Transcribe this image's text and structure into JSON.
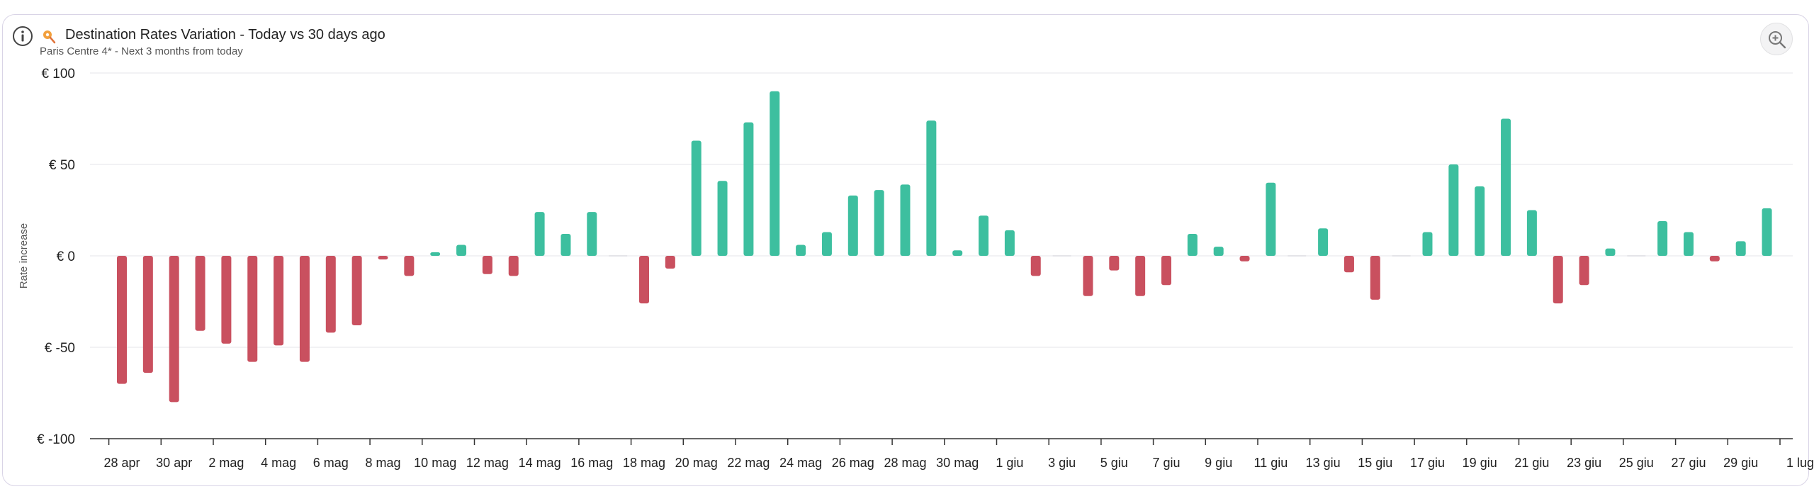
{
  "header": {
    "title": "Destination Rates Variation - Today vs 30 days ago",
    "subtitle": "Paris Centre 4* - Next 3 months from today"
  },
  "icons": {
    "info": "info-icon",
    "pin": "map-pin-icon",
    "zoom": "zoom-in-icon"
  },
  "colors": {
    "positive": "#3dbf9f",
    "negative": "#c9505f",
    "grid": "#e6e6ea",
    "axis": "#333333"
  },
  "chart_data": {
    "type": "bar",
    "title": "",
    "xlabel": "",
    "ylabel": "Rate increase",
    "ylim": [
      -100,
      100
    ],
    "yticks": [
      100,
      50,
      0,
      -50,
      -100
    ],
    "ytick_labels": [
      "€ 100",
      "€ 50",
      "€ 0",
      "€ -50",
      "€ -100"
    ],
    "grid": true,
    "x_tick_labels": [
      "28 apr",
      "30 apr",
      "2 mag",
      "4 mag",
      "6 mag",
      "8 mag",
      "10 mag",
      "12 mag",
      "14 mag",
      "16 mag",
      "18 mag",
      "20 mag",
      "22 mag",
      "24 mag",
      "26 mag",
      "28 mag",
      "30 mag",
      "1 giu",
      "3 giu",
      "5 giu",
      "7 giu",
      "9 giu",
      "11 giu",
      "13 giu",
      "15 giu",
      "17 giu",
      "19 giu",
      "21 giu",
      "23 giu",
      "25 giu",
      "27 giu",
      "29 giu",
      "1 lug"
    ],
    "categories": [
      "28 apr",
      "29 apr",
      "30 apr",
      "1 mag",
      "2 mag",
      "3 mag",
      "4 mag",
      "5 mag",
      "6 mag",
      "7 mag",
      "8 mag",
      "9 mag",
      "10 mag",
      "11 mag",
      "12 mag",
      "13 mag",
      "14 mag",
      "15 mag",
      "16 mag",
      "17 mag",
      "18 mag",
      "19 mag",
      "20 mag",
      "21 mag",
      "22 mag",
      "23 mag",
      "24 mag",
      "25 mag",
      "26 mag",
      "27 mag",
      "28 mag",
      "29 mag",
      "30 mag",
      "31 mag",
      "1 giu",
      "2 giu",
      "3 giu",
      "4 giu",
      "5 giu",
      "6 giu",
      "7 giu",
      "8 giu",
      "9 giu",
      "10 giu",
      "11 giu",
      "12 giu",
      "13 giu",
      "14 giu",
      "15 giu",
      "16 giu",
      "17 giu",
      "18 giu",
      "19 giu",
      "20 giu",
      "21 giu",
      "22 giu",
      "23 giu",
      "24 giu",
      "25 giu",
      "26 giu",
      "27 giu",
      "28 giu",
      "29 giu",
      "30 giu"
    ],
    "values": [
      -70,
      -64,
      -80,
      -41,
      -48,
      -58,
      -49,
      -58,
      -42,
      -38,
      -2,
      -11,
      2,
      6,
      -10,
      -11,
      24,
      12,
      24,
      0,
      -26,
      -7,
      63,
      41,
      73,
      90,
      6,
      13,
      33,
      36,
      39,
      74,
      3,
      22,
      14,
      -11,
      0,
      -22,
      -8,
      -22,
      -16,
      12,
      5,
      -3,
      40,
      0,
      15,
      -9,
      -24,
      0,
      13,
      50,
      38,
      75,
      25,
      -26,
      -16,
      4,
      0,
      19,
      13,
      -3,
      8,
      26
    ]
  }
}
